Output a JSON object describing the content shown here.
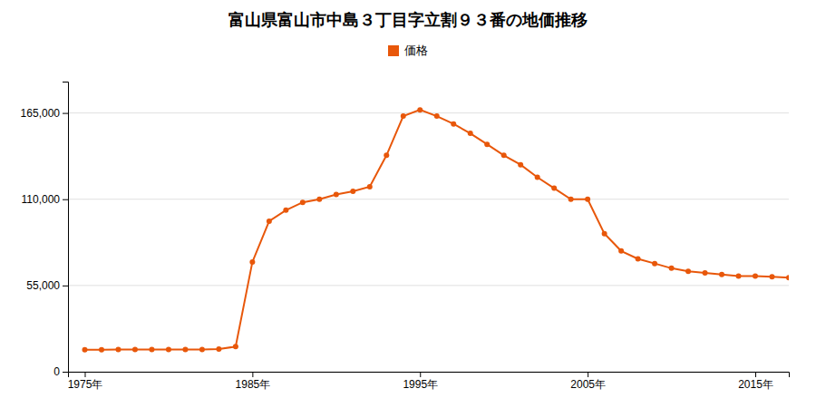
{
  "chart_data": {
    "type": "line",
    "title": "富山県富山市中島３丁目字立割９３番の地価推移",
    "x": [
      1975,
      1976,
      1977,
      1978,
      1979,
      1980,
      1981,
      1982,
      1983,
      1984,
      1985,
      1986,
      1987,
      1988,
      1989,
      1990,
      1991,
      1992,
      1993,
      1994,
      1995,
      1996,
      1997,
      1998,
      1999,
      2000,
      2001,
      2002,
      2003,
      2004,
      2005,
      2006,
      2007,
      2008,
      2009,
      2010,
      2011,
      2012,
      2013,
      2014,
      2015,
      2016,
      2017
    ],
    "series": [
      {
        "name": "価格",
        "color": "#e8570a",
        "marker": "circle",
        "values": [
          14000,
          14000,
          14200,
          14200,
          14200,
          14200,
          14200,
          14200,
          14500,
          16000,
          70000,
          96000,
          103000,
          108000,
          110000,
          113000,
          115000,
          118000,
          138000,
          163000,
          167000,
          163000,
          158000,
          152000,
          145000,
          138000,
          132000,
          124000,
          117000,
          110000,
          110000,
          88000,
          77000,
          72000,
          69000,
          66000,
          64000,
          63000,
          62000,
          61000,
          61000,
          60500,
          60000
        ]
      }
    ],
    "xlim": [
      1974,
      2017
    ],
    "xticks": [
      {
        "value": 1975,
        "label": "1975年"
      },
      {
        "value": 1985,
        "label": "1985年"
      },
      {
        "value": 1995,
        "label": "1995年"
      },
      {
        "value": 2005,
        "label": "2005年"
      },
      {
        "value": 2015,
        "label": "2015年"
      }
    ],
    "ylim": [
      0,
      185000
    ],
    "yticks": [
      0,
      {
        "value": 55000,
        "label": "55,000"
      },
      {
        "value": 110000,
        "label": "110,000"
      },
      {
        "value": 165000,
        "label": "165,000"
      }
    ],
    "grid": "y",
    "legend": "top"
  }
}
